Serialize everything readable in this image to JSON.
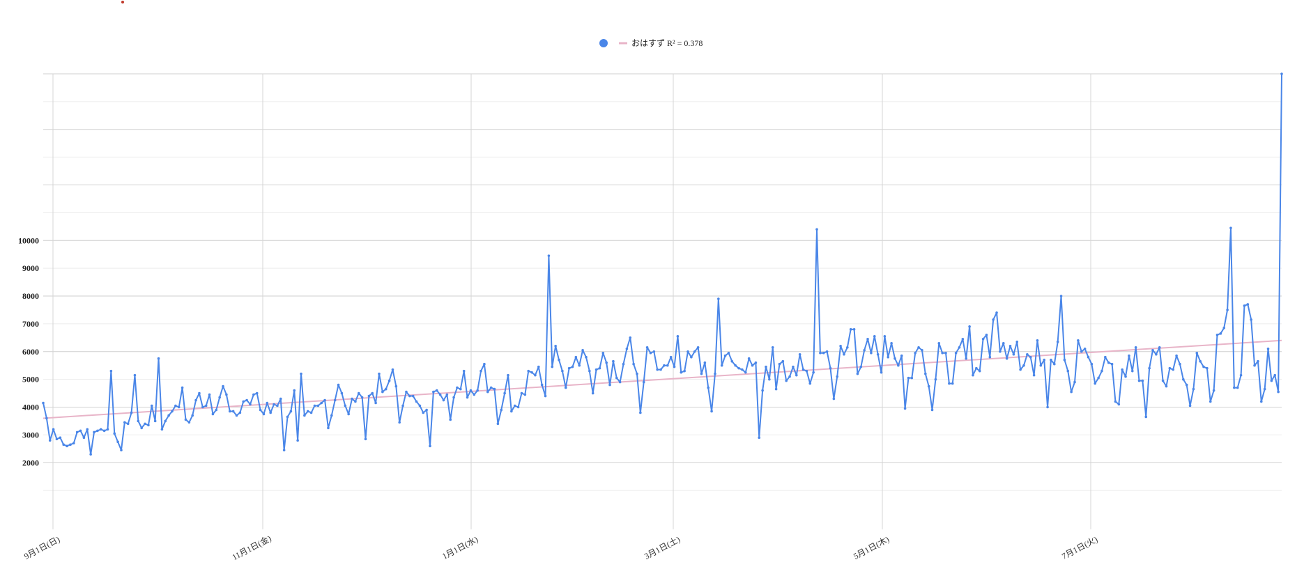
{
  "chart_data": {
    "type": "line",
    "title": "",
    "xlabel": "",
    "ylabel": "",
    "x_tick_labels": [
      "9月1日(日)",
      "11月1日(金)",
      "1月1日(水)",
      "3月1日(土)",
      "5月1日(木)",
      "7月1日(火)"
    ],
    "y_tick_labels": [
      "2000",
      "3000",
      "4000",
      "5000",
      "6000",
      "7000",
      "8000",
      "9000",
      "10000"
    ],
    "ylim": [
      0,
      16000
    ],
    "grid": true,
    "legend_position": "top-center",
    "series": [
      {
        "name": "おはすず",
        "color": "#4a86e8",
        "y": [
          4150,
          3600,
          2800,
          3200,
          2850,
          2900,
          2650,
          2600,
          2650,
          2700,
          3100,
          3150,
          2900,
          3200,
          2300,
          3100,
          3150,
          3200,
          3150,
          3200,
          5300,
          3050,
          2750,
          2450,
          3450,
          3400,
          3800,
          5150,
          3500,
          3250,
          3400,
          3350,
          4050,
          3500,
          5750,
          3200,
          3500,
          3700,
          3850,
          4050,
          4000,
          4700,
          3550,
          3450,
          3700,
          4250,
          4500,
          4000,
          4050,
          4450,
          3750,
          3900,
          4350,
          4750,
          4450,
          3850,
          3850,
          3700,
          3800,
          4200,
          4250,
          4100,
          4450,
          4500,
          3900,
          3750,
          4150,
          3800,
          4100,
          4050,
          4300,
          2450,
          3650,
          3850,
          4600,
          2800,
          5200,
          3700,
          3850,
          3800,
          4050,
          4050,
          4150,
          4250,
          3250,
          3700,
          4250,
          4800,
          4500,
          4050,
          3750,
          4300,
          4200,
          4500,
          4350,
          2850,
          4400,
          4500,
          4150,
          5200,
          4550,
          4650,
          4950,
          5350,
          4750,
          3450,
          4050,
          4550,
          4400,
          4400,
          4200,
          4050,
          3800,
          3900,
          2600,
          4550,
          4600,
          4450,
          4250,
          4450,
          3550,
          4350,
          4700,
          4650,
          5300,
          4350,
          4600,
          4450,
          4600,
          5300,
          5550,
          4550,
          4700,
          4650,
          3400,
          3900,
          4500,
          5150,
          3850,
          4050,
          4000,
          4500,
          4450,
          5300,
          5250,
          5150,
          5450,
          4800,
          4400,
          9450,
          5450,
          6200,
          5700,
          5300,
          4700,
          5400,
          5450,
          5800,
          5500,
          6050,
          5800,
          5300,
          4500,
          5350,
          5400,
          5950,
          5600,
          4800,
          5650,
          5050,
          4900,
          5550,
          6100,
          6500,
          5550,
          5200,
          3800,
          4900,
          6150,
          5950,
          6000,
          5350,
          5350,
          5500,
          5500,
          5800,
          5450,
          6550,
          5250,
          5300,
          6000,
          5800,
          6000,
          6150,
          5200,
          5600,
          4700,
          3850,
          5200,
          7900,
          5500,
          5850,
          5950,
          5650,
          5500,
          5400,
          5350,
          5250,
          5750,
          5500,
          5600,
          2900,
          4600,
          5450,
          5000,
          6150,
          4650,
          5550,
          5650,
          4950,
          5100,
          5450,
          5150,
          5900,
          5350,
          5300,
          4850,
          5250,
          10400,
          5950,
          5950,
          6000,
          5400,
          4300,
          5100,
          6200,
          5900,
          6150,
          6800,
          6800,
          5200,
          5450,
          6050,
          6450,
          5950,
          6550,
          5900,
          5250,
          6550,
          5800,
          6300,
          5750,
          5500,
          5850,
          3950,
          5050,
          5050,
          5950,
          6150,
          6050,
          5200,
          4750,
          3900,
          5000,
          6300,
          5950,
          5950,
          4850,
          4850,
          5950,
          6150,
          6450,
          5750,
          6900,
          5150,
          5400,
          5300,
          6450,
          6600,
          5800,
          7150,
          7400,
          6000,
          6300,
          5750,
          6200,
          5900,
          6350,
          5350,
          5500,
          5900,
          5800,
          5150,
          6400,
          5500,
          5700,
          4000,
          5700,
          5550,
          6350,
          8000,
          5700,
          5300,
          4550,
          4900,
          6400,
          6000,
          6100,
          5800,
          5550,
          4850,
          5050,
          5300,
          5800,
          5600,
          5550,
          4200,
          4100,
          5350,
          5100,
          5850,
          5300,
          6150,
          4950,
          4950,
          3650,
          5400,
          6050,
          5900,
          6150,
          4950,
          4750,
          5400,
          5350,
          5850,
          5550,
          5000,
          4800,
          4050,
          4650,
          5950,
          5650,
          5450,
          5400,
          4200,
          4600,
          6600,
          6650,
          6850,
          7500,
          10450,
          4700,
          4700,
          5150,
          7650,
          7700,
          7150,
          5500,
          5650,
          4200,
          4650,
          6100,
          4950,
          5150,
          4550,
          16000
        ]
      }
    ],
    "trendline": {
      "label": "R² = 0.378",
      "color": "#e8b4c8",
      "start": 3600,
      "end": 6400
    }
  }
}
